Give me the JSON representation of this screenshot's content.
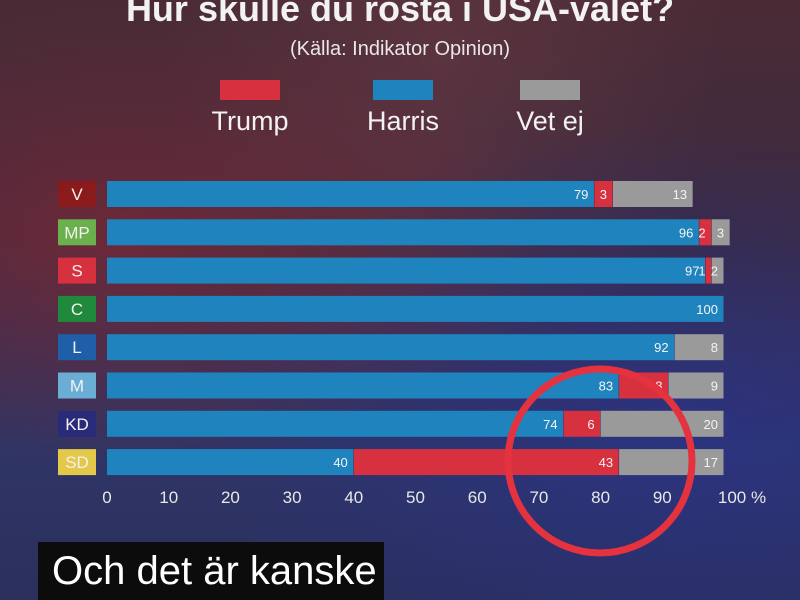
{
  "colors": {
    "trump": "#d7303f",
    "harris": "#1f84be",
    "vet_ej": "#9a9a9a",
    "highlight_ring": "#e5323f"
  },
  "caption": "Och det är kanske",
  "chart_data": {
    "type": "bar",
    "orientation": "horizontal",
    "stacked": true,
    "title": "Hur skulle du rösta i USA-valet?",
    "subtitle": "(Källa: Indikator Opinion)",
    "xlim": [
      0,
      100
    ],
    "x_ticks": [
      "0",
      "10",
      "20",
      "30",
      "40",
      "50",
      "60",
      "70",
      "80",
      "90",
      "100 %"
    ],
    "legend_position": "top",
    "categories": [
      {
        "label": "V",
        "color": "#8b1a1a"
      },
      {
        "label": "MP",
        "color": "#6ab04c"
      },
      {
        "label": "S",
        "color": "#d7303f"
      },
      {
        "label": "C",
        "color": "#1f8a3c"
      },
      {
        "label": "L",
        "color": "#1e5fa8"
      },
      {
        "label": "M",
        "color": "#6aaed6"
      },
      {
        "label": "KD",
        "color": "#2a2a7a"
      },
      {
        "label": "SD",
        "color": "#e4c84a"
      }
    ],
    "stack_order": [
      "Harris",
      "Trump",
      "Vet ej"
    ],
    "series": [
      {
        "name": "Trump",
        "color": "#d7303f",
        "values": [
          3,
          2,
          1,
          0,
          0,
          8,
          6,
          43
        ],
        "labels": [
          "3",
          "2",
          "1",
          "",
          "",
          "8",
          "6",
          "43"
        ]
      },
      {
        "name": "Harris",
        "color": "#1f84be",
        "values": [
          79,
          96,
          97,
          100,
          92,
          83,
          74,
          40
        ],
        "labels": [
          "79",
          "96",
          "97",
          "100",
          "92",
          "83",
          "74",
          "40"
        ]
      },
      {
        "name": "Vet ej",
        "color": "#9a9a9a",
        "values": [
          13,
          3,
          2,
          0,
          8,
          9,
          20,
          17
        ],
        "labels": [
          "13",
          "3",
          "2",
          "",
          "8",
          "9",
          "20",
          "17"
        ]
      }
    ]
  }
}
